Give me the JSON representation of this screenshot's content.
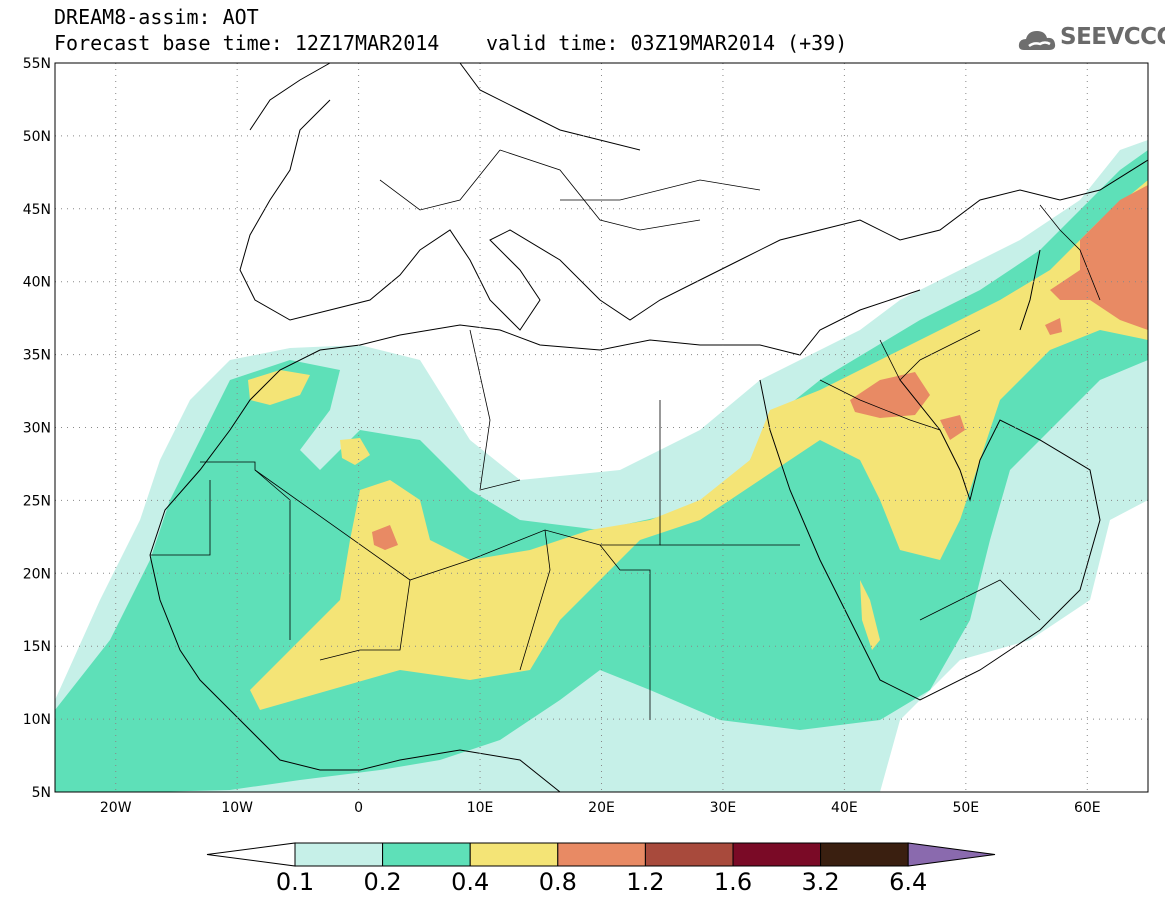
{
  "header": {
    "line1": "DREAM8-assim: AOT",
    "line2": "Forecast base time: 12Z17MAR2014",
    "line3": "valid time: 03Z19MAR2014 (+39)",
    "logo_text": "SEEVCCC",
    "logo_icon": "cloud-icon"
  },
  "map_data": {
    "lon_range": [
      -25,
      65
    ],
    "lat_range": [
      5,
      55
    ],
    "x_ticks": [
      "20W",
      "10W",
      "0",
      "10E",
      "20E",
      "30E",
      "40E",
      "50E",
      "60E"
    ],
    "y_ticks": [
      "55N",
      "50N",
      "45N",
      "40N",
      "35N",
      "30N",
      "25N",
      "20N",
      "15N",
      "10N",
      "5N"
    ],
    "grid": "dotted"
  },
  "colorbar": {
    "labels": [
      "0.1",
      "0.2",
      "0.4",
      "0.8",
      "1.2",
      "1.6",
      "3.2",
      "6.4"
    ],
    "colors": [
      "#ffffff",
      "#c6f0e8",
      "#5ee0b8",
      "#f4e476",
      "#e88a64",
      "#a84a3c",
      "#7a0a26",
      "#3a1f10",
      "#8a6aae"
    ]
  }
}
